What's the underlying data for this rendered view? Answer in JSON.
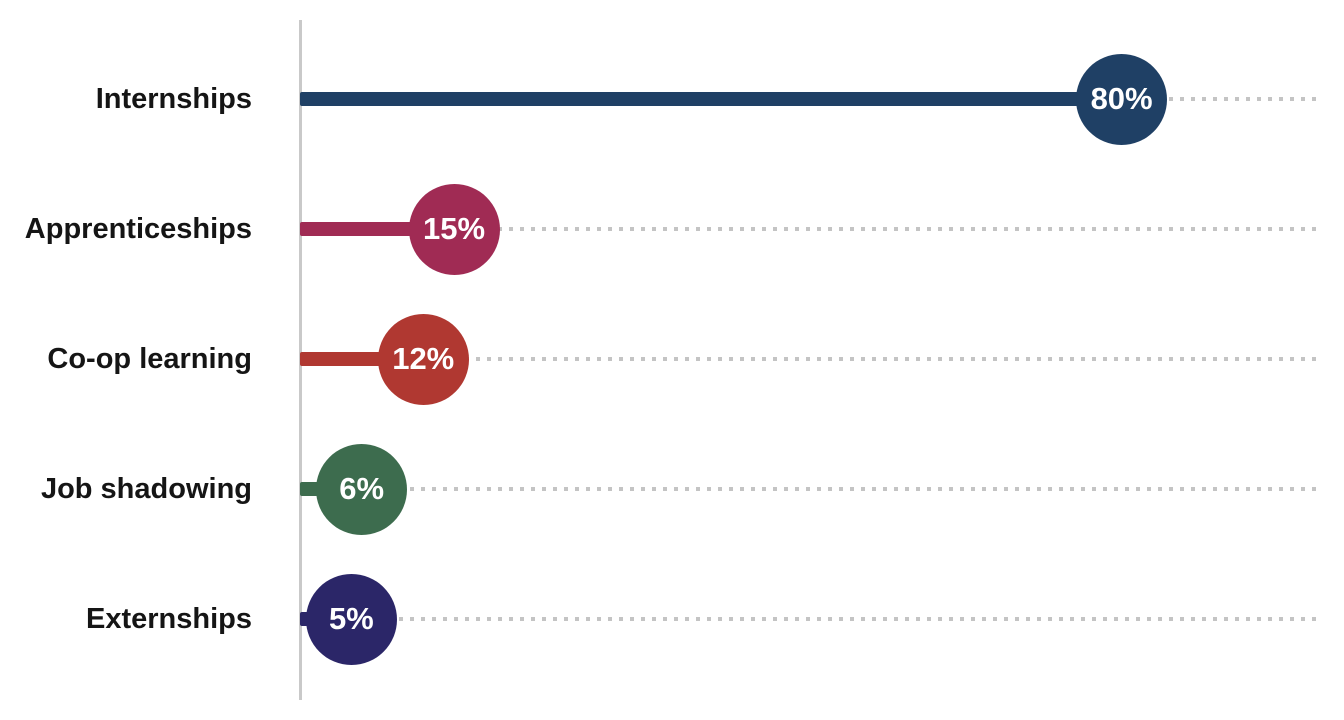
{
  "chart_data": {
    "type": "lollipop",
    "title": "",
    "xlabel": "",
    "ylabel": "",
    "categories": [
      "Internships",
      "Apprenticeships",
      "Co-op learning",
      "Job shadowing",
      "Externships"
    ],
    "values": [
      80,
      15,
      12,
      6,
      5
    ],
    "value_labels": [
      "80%",
      "15%",
      "12%",
      "6%",
      "5%"
    ],
    "colors": [
      "#1F4065",
      "#A02B54",
      "#B03831",
      "#3D6C4E",
      "#2B2668"
    ],
    "xlim": [
      0,
      100
    ],
    "orientation": "horizontal",
    "grid": "dotted-horizontal-leaders",
    "axis_line_color": "#c9c9c9",
    "dotted_leader_color": "#c4c4c4",
    "label_color": "#151515",
    "value_text_color": "#ffffff",
    "background_color": "#ffffff",
    "legend": "none"
  }
}
